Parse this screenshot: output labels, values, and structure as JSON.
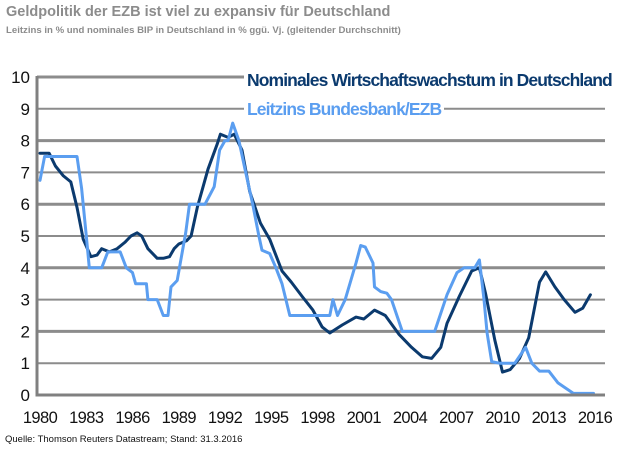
{
  "header": {
    "title": "Geldpolitik der EZB ist viel zu expansiv für Deutschland",
    "subtitle": "Leitzins in % und nominales BIP in Deutschland in % ggü. Vj. (gleitender Durchschnitt)"
  },
  "footer": {
    "source": "Quelle: Thomson Reuters Datastream; Stand: 31.3.2016"
  },
  "colors": {
    "gdp": "#0b3a6e",
    "rate": "#5b9ef0",
    "grid": "#8c8c8c",
    "axis": "#808080"
  },
  "chart_data": {
    "type": "line",
    "title": "Geldpolitik der EZB ist viel zu expansiv für Deutschland",
    "subtitle": "Leitzins in % und nominales BIP in Deutschland in % ggü. Vj. (gleitender Durchschnitt)",
    "xlabel": "",
    "ylabel": "",
    "xlim": [
      1980,
      2016
    ],
    "ylim": [
      0,
      10
    ],
    "grid": true,
    "legend_position": "top-right",
    "x_ticks": [
      "1980",
      "1983",
      "1986",
      "1989",
      "1992",
      "1995",
      "1998",
      "2001",
      "2004",
      "2007",
      "2010",
      "2013",
      "2016"
    ],
    "y_ticks": [
      "0",
      "1",
      "2",
      "3",
      "4",
      "5",
      "6",
      "7",
      "8",
      "9",
      "10"
    ],
    "series": [
      {
        "name": "Nominales Wirtschaftswachstum in Deutschland",
        "color": "#0b3a6e",
        "points": [
          [
            1980.0,
            7.6
          ],
          [
            1980.6,
            7.6
          ],
          [
            1981.0,
            7.2
          ],
          [
            1981.5,
            6.9
          ],
          [
            1982.0,
            6.7
          ],
          [
            1982.4,
            5.9
          ],
          [
            1982.8,
            4.9
          ],
          [
            1983.3,
            4.35
          ],
          [
            1983.7,
            4.4
          ],
          [
            1984.0,
            4.6
          ],
          [
            1984.5,
            4.5
          ],
          [
            1985.0,
            4.6
          ],
          [
            1985.5,
            4.8
          ],
          [
            1985.9,
            5.0
          ],
          [
            1986.3,
            5.1
          ],
          [
            1986.6,
            5.0
          ],
          [
            1987.0,
            4.6
          ],
          [
            1987.6,
            4.3
          ],
          [
            1988.0,
            4.3
          ],
          [
            1988.4,
            4.35
          ],
          [
            1988.7,
            4.6
          ],
          [
            1989.0,
            4.75
          ],
          [
            1989.5,
            4.85
          ],
          [
            1989.8,
            5.0
          ],
          [
            1990.2,
            5.9
          ],
          [
            1990.9,
            7.1
          ],
          [
            1991.5,
            7.9
          ],
          [
            1991.7,
            8.2
          ],
          [
            1992.2,
            8.1
          ],
          [
            1992.6,
            8.2
          ],
          [
            1993.1,
            7.7
          ],
          [
            1993.6,
            6.4
          ],
          [
            1994.3,
            5.4
          ],
          [
            1994.9,
            4.9
          ],
          [
            1995.7,
            3.9
          ],
          [
            1996.3,
            3.55
          ],
          [
            1997.0,
            3.1
          ],
          [
            1997.7,
            2.67
          ],
          [
            1998.3,
            2.14
          ],
          [
            1998.8,
            1.95
          ],
          [
            1999.6,
            2.2
          ],
          [
            2000.5,
            2.45
          ],
          [
            2001.0,
            2.39
          ],
          [
            2001.7,
            2.67
          ],
          [
            2002.4,
            2.5
          ],
          [
            2003.3,
            1.9
          ],
          [
            2004.1,
            1.5
          ],
          [
            2004.8,
            1.2
          ],
          [
            2005.4,
            1.15
          ],
          [
            2006.0,
            1.5
          ],
          [
            2006.4,
            2.25
          ],
          [
            2007.2,
            3.1
          ],
          [
            2008.0,
            3.9
          ],
          [
            2008.5,
            4.0
          ],
          [
            2008.9,
            3.2
          ],
          [
            2009.5,
            1.73
          ],
          [
            2010.0,
            0.72
          ],
          [
            2010.5,
            0.8
          ],
          [
            2011.1,
            1.15
          ],
          [
            2011.7,
            1.8
          ],
          [
            2012.4,
            3.55
          ],
          [
            2012.8,
            3.87
          ],
          [
            2013.4,
            3.4
          ],
          [
            2014.0,
            3.0
          ],
          [
            2014.7,
            2.6
          ],
          [
            2015.2,
            2.73
          ],
          [
            2015.7,
            3.15
          ]
        ]
      },
      {
        "name": "Leitzins Bundesbank/EZB",
        "color": "#5b9ef0",
        "points": [
          [
            1980.0,
            6.75
          ],
          [
            1980.3,
            7.5
          ],
          [
            1982.4,
            7.5
          ],
          [
            1982.7,
            6.5
          ],
          [
            1983.0,
            5.0
          ],
          [
            1983.2,
            4.0
          ],
          [
            1984.0,
            4.0
          ],
          [
            1984.4,
            4.5
          ],
          [
            1985.2,
            4.5
          ],
          [
            1985.6,
            4.0
          ],
          [
            1986.0,
            3.85
          ],
          [
            1986.2,
            3.5
          ],
          [
            1986.9,
            3.5
          ],
          [
            1987.0,
            3.0
          ],
          [
            1987.6,
            3.0
          ],
          [
            1988.0,
            2.5
          ],
          [
            1988.3,
            2.5
          ],
          [
            1988.5,
            3.4
          ],
          [
            1988.9,
            3.6
          ],
          [
            1989.1,
            4.15
          ],
          [
            1989.45,
            5.1
          ],
          [
            1989.7,
            6.0
          ],
          [
            1990.7,
            6.0
          ],
          [
            1991.3,
            6.55
          ],
          [
            1991.65,
            7.7
          ],
          [
            1992.0,
            8.0
          ],
          [
            1992.2,
            8.0
          ],
          [
            1992.5,
            8.55
          ],
          [
            1992.9,
            8.0
          ],
          [
            1993.3,
            7.1
          ],
          [
            1993.8,
            6.0
          ],
          [
            1994.2,
            5.0
          ],
          [
            1994.4,
            4.55
          ],
          [
            1994.9,
            4.45
          ],
          [
            1995.3,
            4.0
          ],
          [
            1995.7,
            3.5
          ],
          [
            1996.2,
            2.5
          ],
          [
            1998.8,
            2.5
          ],
          [
            1999.0,
            3.0
          ],
          [
            1999.3,
            2.5
          ],
          [
            1999.8,
            3.0
          ],
          [
            2000.5,
            4.15
          ],
          [
            2000.8,
            4.7
          ],
          [
            2001.1,
            4.65
          ],
          [
            2001.6,
            4.15
          ],
          [
            2001.7,
            3.4
          ],
          [
            2002.1,
            3.25
          ],
          [
            2002.5,
            3.2
          ],
          [
            2002.8,
            3.0
          ],
          [
            2003.5,
            2.0
          ],
          [
            2005.6,
            2.0
          ],
          [
            2006.4,
            3.15
          ],
          [
            2007.05,
            3.85
          ],
          [
            2007.5,
            4.0
          ],
          [
            2008.2,
            4.0
          ],
          [
            2008.5,
            4.25
          ],
          [
            2008.8,
            3.0
          ],
          [
            2009.0,
            1.95
          ],
          [
            2009.3,
            1.05
          ],
          [
            2009.8,
            1.0
          ],
          [
            2010.8,
            1.0
          ],
          [
            2011.5,
            1.5
          ],
          [
            2011.9,
            1.0
          ],
          [
            2012.4,
            0.75
          ],
          [
            2013.0,
            0.75
          ],
          [
            2013.6,
            0.38
          ],
          [
            2014.0,
            0.25
          ],
          [
            2014.6,
            0.05
          ],
          [
            2015.9,
            0.05
          ]
        ]
      }
    ]
  }
}
